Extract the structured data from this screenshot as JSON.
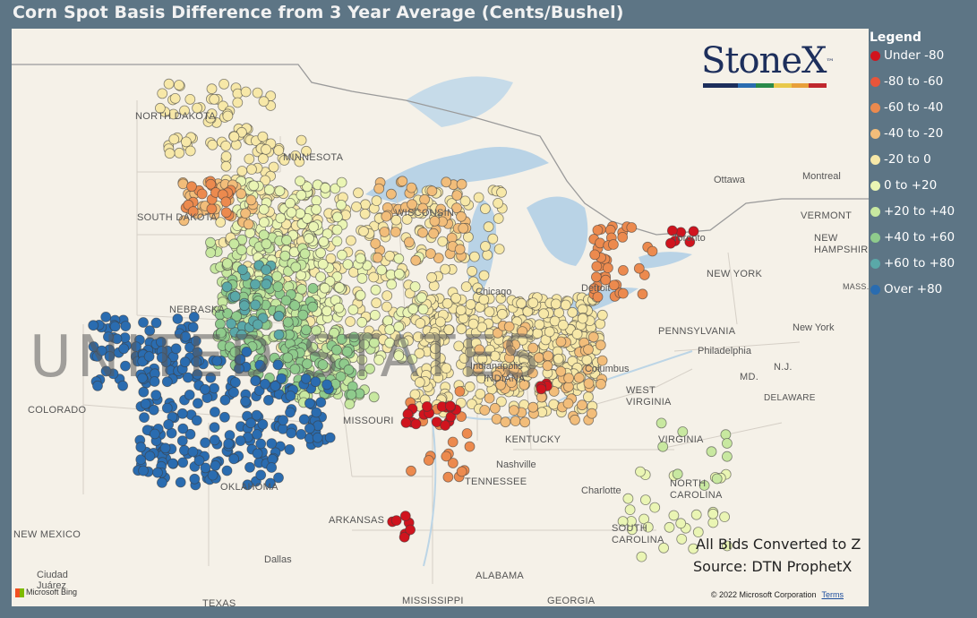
{
  "title": "Corn Spot Basis Difference from 3 Year Average (Cents/Bushel)",
  "legend": {
    "title": "Legend",
    "items": [
      {
        "label": "Under -80",
        "color": "#d0141e"
      },
      {
        "label": "-80 to -60",
        "color": "#e8553a"
      },
      {
        "label": "-60 to -40",
        "color": "#ec8a4e"
      },
      {
        "label": "-40 to -20",
        "color": "#f2bd7a"
      },
      {
        "label": "-20 to 0",
        "color": "#f7e8a8"
      },
      {
        "label": "0 to +20",
        "color": "#eaf5b4"
      },
      {
        "label": "+20 to +40",
        "color": "#c8e8a0"
      },
      {
        "label": "+40 to +60",
        "color": "#8fcb8c"
      },
      {
        "label": "+60 to +80",
        "color": "#5aa8a8"
      },
      {
        "label": "Over +80",
        "color": "#2a6cb0"
      }
    ]
  },
  "logo": {
    "text": "StoneX",
    "tm": "™",
    "bar_colors": [
      "#1d2f5c",
      "#1d2f5c",
      "#2a6cb0",
      "#2a8a4a",
      "#e8c84a",
      "#e8a03a",
      "#c0282e"
    ]
  },
  "notes": {
    "line1": "All Bids Converted to Z",
    "line2": "Source: DTN ProphetX"
  },
  "copyright": "© 2022 Microsoft Corporation",
  "terms": "Terms",
  "bing": "Microsoft Bing",
  "watermark": "UNITED STATES",
  "states": [
    "NORTH DAKOTA",
    "MINNESOTA",
    "SOUTH DAKOTA",
    "WISCONSIN",
    "NEBRASKA",
    "COLORADO",
    "MISSOURI",
    "KENTUCKY",
    "TENNESSEE",
    "OKLAHOMA",
    "ARKANSAS",
    "NEW MEXICO",
    "MISSISSIPPI",
    "ALABAMA",
    "GEORGIA",
    "WEST VIRGINIA",
    "VIRGINIA",
    "NORTH CAROLINA",
    "SOUTH CAROLINA",
    "PENNSYLVANIA",
    "NEW YORK",
    "VERMONT",
    "NEW HAMPSHIRE",
    "MASS.",
    "N.J.",
    "MD.",
    "DELAWARE",
    "INDIANA",
    "TEXAS"
  ],
  "cities": [
    "Chicago",
    "Detroit",
    "Toronto",
    "Ottawa",
    "Montreal",
    "Columbus",
    "Nashville",
    "Charlotte",
    "Dallas",
    "Philadelphia",
    "New York",
    "Ciudad Juárez",
    "Indianapolis"
  ],
  "marker_groups": [
    {
      "range": "Over +80",
      "color": "#2a6cb0"
    },
    {
      "range": "+60 to +80",
      "color": "#5aa8a8"
    },
    {
      "range": "+40 to +60",
      "color": "#8fcb8c"
    },
    {
      "range": "+20 to +40",
      "color": "#c8e8a0"
    },
    {
      "range": "0 to +20",
      "color": "#eaf5b4"
    },
    {
      "range": "-20 to 0",
      "color": "#f7e8a8"
    },
    {
      "range": "-40 to -20",
      "color": "#f2bd7a"
    },
    {
      "range": "-60 to -40",
      "color": "#ec8a4e"
    },
    {
      "range": "-80 to -60",
      "color": "#e8553a"
    },
    {
      "range": "Under -80",
      "color": "#d0141e"
    }
  ]
}
